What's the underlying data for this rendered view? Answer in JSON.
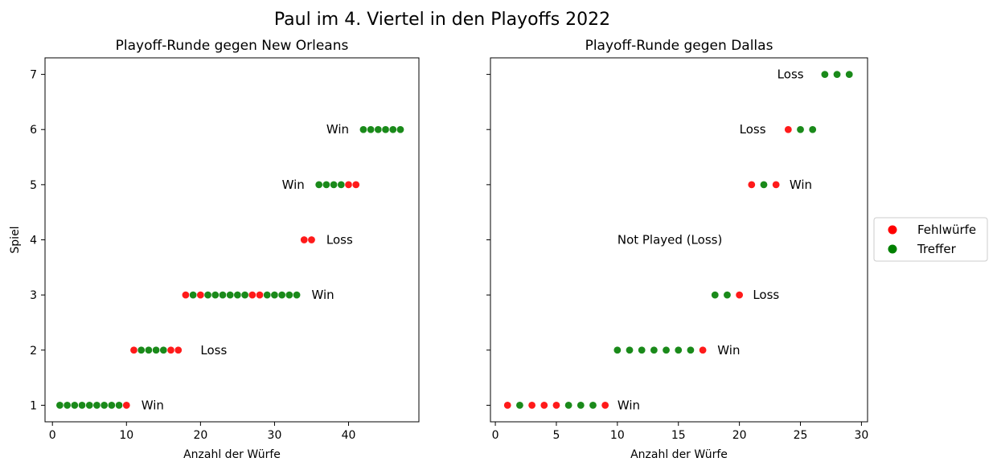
{
  "chart_data": {
    "title": "Paul im 4. Viertel in den Playoffs 2022",
    "type": "scatter",
    "colors": {
      "miss": "#ff0000",
      "make": "#008000"
    },
    "legend": {
      "position": "outside-right",
      "entries": [
        {
          "key": "miss",
          "label": "Fehlwürfe"
        },
        {
          "key": "make",
          "label": "Treffer"
        }
      ]
    },
    "panels": [
      {
        "title": "Playoff-Runde gegen New Orleans",
        "xlabel": "Anzahl der Würfe",
        "ylabel": "Spiel",
        "xlim": [
          -1,
          49.5
        ],
        "ylim": [
          0.7,
          7.3
        ],
        "xticks": [
          0,
          10,
          20,
          30,
          40
        ],
        "yticks": [
          1,
          2,
          3,
          4,
          5,
          6,
          7
        ],
        "show_ytick_labels": true,
        "games": [
          {
            "game": 1,
            "outcome": "Win",
            "label_x": 12,
            "shots": [
              {
                "x": 1,
                "made": true
              },
              {
                "x": 2,
                "made": true
              },
              {
                "x": 3,
                "made": true
              },
              {
                "x": 4,
                "made": true
              },
              {
                "x": 5,
                "made": true
              },
              {
                "x": 6,
                "made": true
              },
              {
                "x": 7,
                "made": true
              },
              {
                "x": 8,
                "made": true
              },
              {
                "x": 9,
                "made": true
              },
              {
                "x": 10,
                "made": false
              }
            ]
          },
          {
            "game": 2,
            "outcome": "Loss",
            "label_x": 20,
            "shots": [
              {
                "x": 11,
                "made": false
              },
              {
                "x": 12,
                "made": true
              },
              {
                "x": 13,
                "made": true
              },
              {
                "x": 14,
                "made": true
              },
              {
                "x": 15,
                "made": true
              },
              {
                "x": 16,
                "made": false
              },
              {
                "x": 17,
                "made": false
              }
            ]
          },
          {
            "game": 3,
            "outcome": "Win",
            "label_x": 35,
            "shots": [
              {
                "x": 18,
                "made": false
              },
              {
                "x": 19,
                "made": true
              },
              {
                "x": 20,
                "made": false
              },
              {
                "x": 21,
                "made": true
              },
              {
                "x": 22,
                "made": true
              },
              {
                "x": 23,
                "made": true
              },
              {
                "x": 24,
                "made": true
              },
              {
                "x": 25,
                "made": true
              },
              {
                "x": 26,
                "made": true
              },
              {
                "x": 27,
                "made": false
              },
              {
                "x": 28,
                "made": false
              },
              {
                "x": 29,
                "made": true
              },
              {
                "x": 30,
                "made": true
              },
              {
                "x": 31,
                "made": true
              },
              {
                "x": 32,
                "made": true
              },
              {
                "x": 33,
                "made": true
              }
            ]
          },
          {
            "game": 4,
            "outcome": "Loss",
            "label_x": 37,
            "shots": [
              {
                "x": 34,
                "made": false
              },
              {
                "x": 35,
                "made": false
              }
            ]
          },
          {
            "game": 5,
            "outcome": "Win",
            "label_x": 31,
            "shots": [
              {
                "x": 36,
                "made": true
              },
              {
                "x": 37,
                "made": true
              },
              {
                "x": 38,
                "made": true
              },
              {
                "x": 39,
                "made": true
              },
              {
                "x": 40,
                "made": false
              },
              {
                "x": 41,
                "made": false
              }
            ]
          },
          {
            "game": 6,
            "outcome": "Win",
            "label_x": 37,
            "shots": [
              {
                "x": 42,
                "made": true
              },
              {
                "x": 43,
                "made": true
              },
              {
                "x": 44,
                "made": true
              },
              {
                "x": 45,
                "made": true
              },
              {
                "x": 46,
                "made": true
              },
              {
                "x": 47,
                "made": true
              }
            ]
          }
        ]
      },
      {
        "title": "Playoff-Runde gegen Dallas",
        "xlabel": "Anzahl der Würfe",
        "ylabel": "",
        "xlim": [
          -0.4,
          30.5
        ],
        "ylim": [
          0.7,
          7.3
        ],
        "xticks": [
          0,
          5,
          10,
          15,
          20,
          25,
          30
        ],
        "yticks": [
          1,
          2,
          3,
          4,
          5,
          6,
          7
        ],
        "show_ytick_labels": false,
        "games": [
          {
            "game": 1,
            "outcome": "Win",
            "label_x": 10,
            "shots": [
              {
                "x": 1,
                "made": false
              },
              {
                "x": 2,
                "made": true
              },
              {
                "x": 3,
                "made": false
              },
              {
                "x": 4,
                "made": false
              },
              {
                "x": 5,
                "made": false
              },
              {
                "x": 6,
                "made": true
              },
              {
                "x": 7,
                "made": true
              },
              {
                "x": 8,
                "made": true
              },
              {
                "x": 9,
                "made": false
              }
            ]
          },
          {
            "game": 2,
            "outcome": "Win",
            "label_x": 18.2,
            "shots": [
              {
                "x": 10,
                "made": true
              },
              {
                "x": 11,
                "made": true
              },
              {
                "x": 12,
                "made": true
              },
              {
                "x": 13,
                "made": true
              },
              {
                "x": 14,
                "made": true
              },
              {
                "x": 15,
                "made": true
              },
              {
                "x": 16,
                "made": true
              },
              {
                "x": 17,
                "made": false
              }
            ]
          },
          {
            "game": 3,
            "outcome": "Loss",
            "label_x": 21.1,
            "shots": [
              {
                "x": 18,
                "made": true
              },
              {
                "x": 19,
                "made": true
              },
              {
                "x": 20,
                "made": false
              }
            ]
          },
          {
            "game": 4,
            "outcome": "Not Played (Loss)",
            "label_x": 10,
            "shots": []
          },
          {
            "game": 5,
            "outcome": "Win",
            "label_x": 24.1,
            "shots": [
              {
                "x": 21,
                "made": false
              },
              {
                "x": 22,
                "made": true
              },
              {
                "x": 23,
                "made": false
              }
            ]
          },
          {
            "game": 6,
            "outcome": "Loss",
            "label_x": 20,
            "shots": [
              {
                "x": 24,
                "made": false
              },
              {
                "x": 25,
                "made": true
              },
              {
                "x": 26,
                "made": true
              }
            ]
          },
          {
            "game": 7,
            "outcome": "Loss",
            "label_x": 23.1,
            "shots": [
              {
                "x": 27,
                "made": true
              },
              {
                "x": 28,
                "made": true
              },
              {
                "x": 29,
                "made": true
              }
            ]
          }
        ]
      }
    ]
  }
}
